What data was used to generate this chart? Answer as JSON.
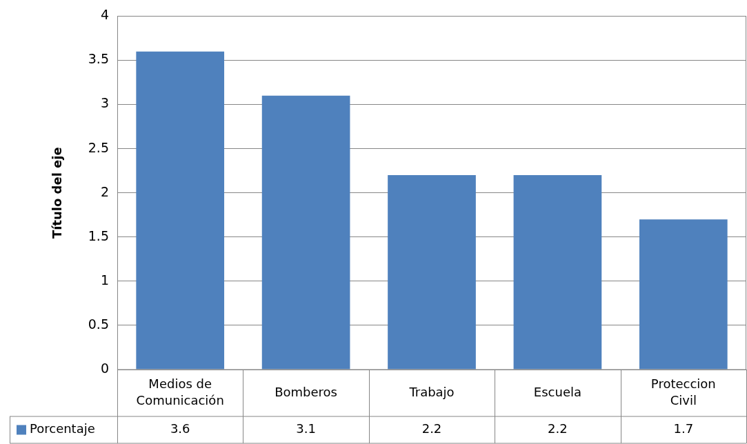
{
  "chart_data": {
    "type": "bar",
    "ylabel": "Título del eje",
    "categories": [
      "Medios de Comunicación",
      "Bomberos",
      "Trabajo",
      "Escuela",
      "Proteccion Civil"
    ],
    "series": [
      {
        "name": "Porcentaje",
        "color": "#4f81bd",
        "values": [
          3.6,
          3.1,
          2.2,
          2.2,
          1.7
        ]
      }
    ],
    "ylim": [
      0,
      4
    ],
    "yticks": [
      0,
      0.5,
      1,
      1.5,
      2,
      2.5,
      3,
      3.5,
      4
    ],
    "grid": "y",
    "legend": "bottom",
    "data_labels": true
  }
}
